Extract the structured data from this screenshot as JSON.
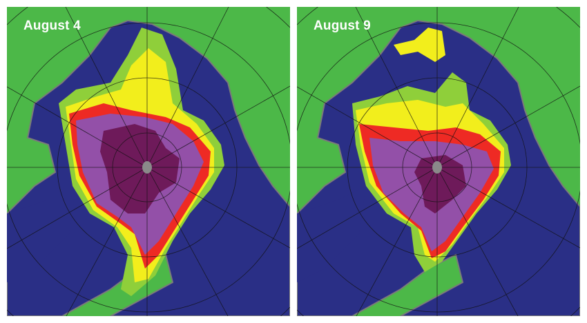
{
  "panels": [
    {
      "label": "August 4"
    },
    {
      "label": "August 9"
    }
  ],
  "colors": {
    "land": "#4cb848",
    "ocean": "#2a2f86",
    "coast": "#7a7a7a",
    "ice_low": "#3fae4a",
    "ice_mid": "#f2ee1c",
    "ice_high": "#ee2a24",
    "ice_very_high": "#9350a8",
    "ice_full": "#6e1a5a",
    "pole_hole": "#8a8a8a"
  }
}
